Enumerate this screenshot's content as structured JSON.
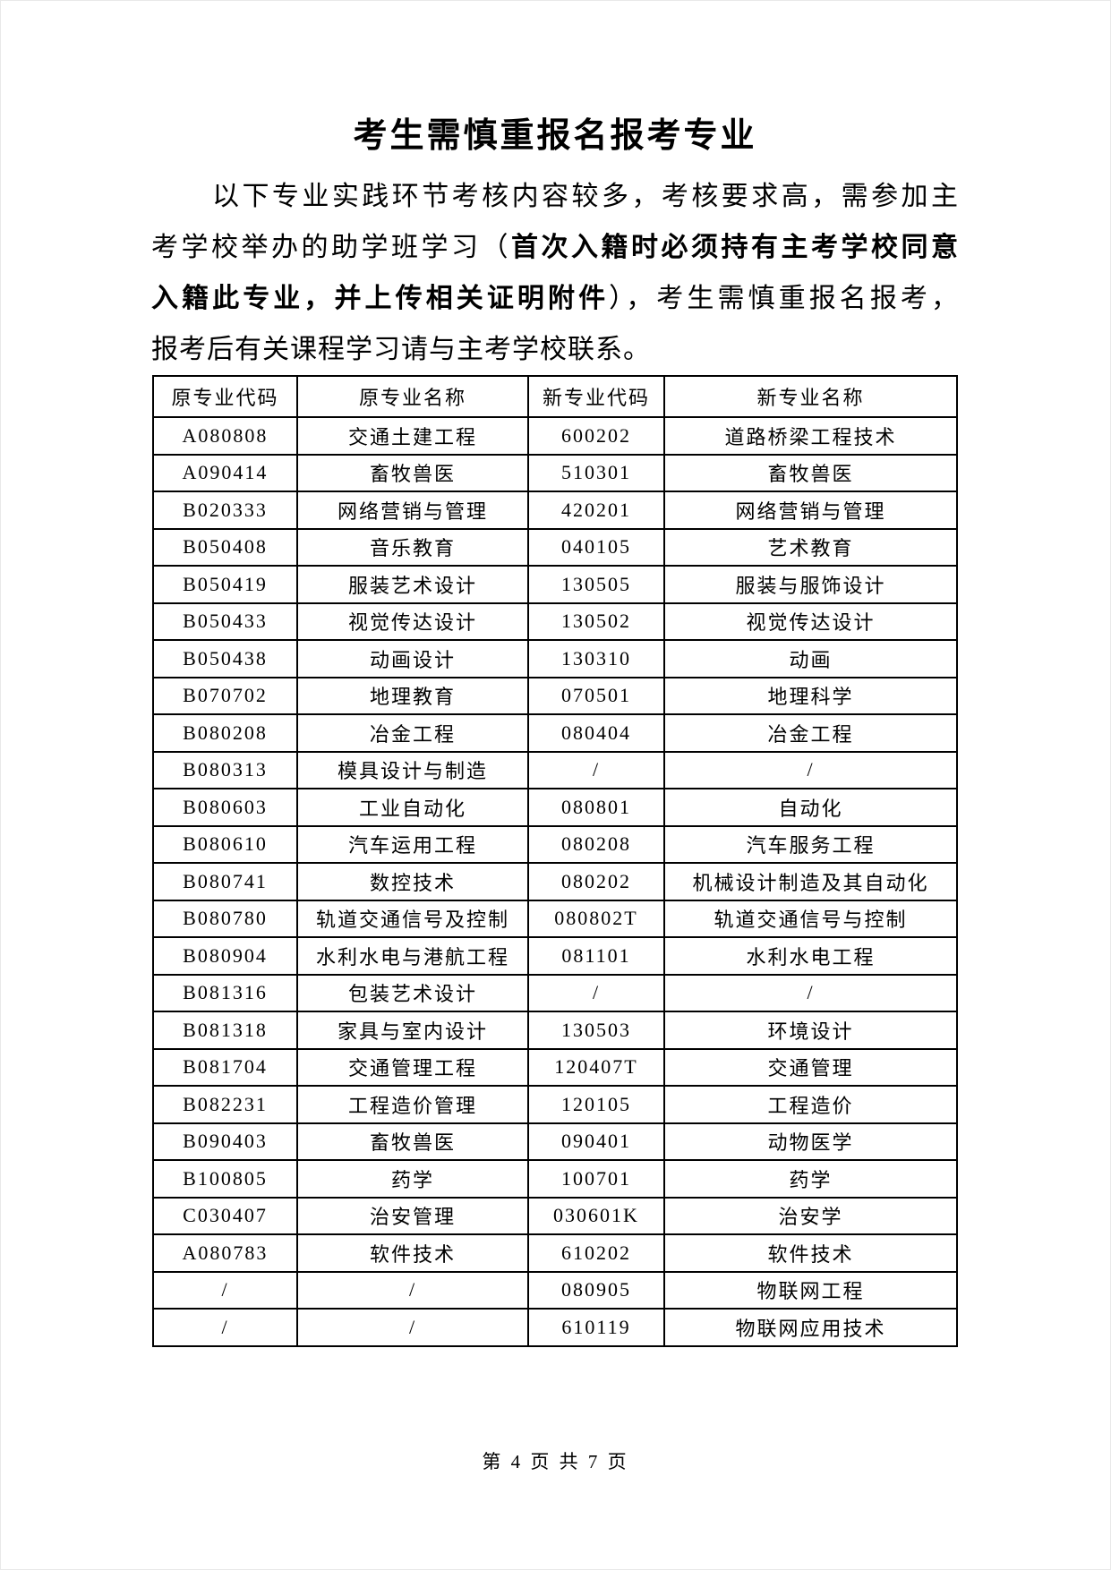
{
  "document": {
    "title": "考生需慎重报名报考专业",
    "footer": "第 4 页 共 7 页"
  },
  "intro": {
    "lines": [
      {
        "indent": true,
        "justify": true,
        "segments": [
          {
            "text": "以下专业实践环节考核内容较多，考核要求高，需参加主",
            "bold": false
          }
        ]
      },
      {
        "indent": false,
        "justify": true,
        "segments": [
          {
            "text": "考学校举办的助学班学习（",
            "bold": false
          },
          {
            "text": "首次入籍时必须持有主考学校同意",
            "bold": true
          }
        ]
      },
      {
        "indent": false,
        "justify": true,
        "segments": [
          {
            "text": "入籍此专业，并上传相关证明附件",
            "bold": true
          },
          {
            "text": "），考生需慎重报名报考，",
            "bold": false
          }
        ]
      },
      {
        "indent": false,
        "justify": false,
        "segments": [
          {
            "text": "报考后有关课程学习请与主考学校联系。",
            "bold": false
          }
        ]
      }
    ]
  },
  "table": {
    "headers": [
      "原专业代码",
      "原专业名称",
      "新专业代码",
      "新专业名称"
    ],
    "rows": [
      [
        "A080808",
        "交通土建工程",
        "600202",
        "道路桥梁工程技术"
      ],
      [
        "A090414",
        "畜牧兽医",
        "510301",
        "畜牧兽医"
      ],
      [
        "B020333",
        "网络营销与管理",
        "420201",
        "网络营销与管理"
      ],
      [
        "B050408",
        "音乐教育",
        "040105",
        "艺术教育"
      ],
      [
        "B050419",
        "服装艺术设计",
        "130505",
        "服装与服饰设计"
      ],
      [
        "B050433",
        "视觉传达设计",
        "130502",
        "视觉传达设计"
      ],
      [
        "B050438",
        "动画设计",
        "130310",
        "动画"
      ],
      [
        "B070702",
        "地理教育",
        "070501",
        "地理科学"
      ],
      [
        "B080208",
        "冶金工程",
        "080404",
        "冶金工程"
      ],
      [
        "B080313",
        "模具设计与制造",
        "/",
        "/"
      ],
      [
        "B080603",
        "工业自动化",
        "080801",
        "自动化"
      ],
      [
        "B080610",
        "汽车运用工程",
        "080208",
        "汽车服务工程"
      ],
      [
        "B080741",
        "数控技术",
        "080202",
        "机械设计制造及其自动化"
      ],
      [
        "B080780",
        "轨道交通信号及控制",
        "080802T",
        "轨道交通信号与控制"
      ],
      [
        "B080904",
        "水利水电与港航工程",
        "081101",
        "水利水电工程"
      ],
      [
        "B081316",
        "包装艺术设计",
        "/",
        "/"
      ],
      [
        "B081318",
        "家具与室内设计",
        "130503",
        "环境设计"
      ],
      [
        "B081704",
        "交通管理工程",
        "120407T",
        "交通管理"
      ],
      [
        "B082231",
        "工程造价管理",
        "120105",
        "工程造价"
      ],
      [
        "B090403",
        "畜牧兽医",
        "090401",
        "动物医学"
      ],
      [
        "B100805",
        "药学",
        "100701",
        "药学"
      ],
      [
        "C030407",
        "治安管理",
        "030601K",
        "治安学"
      ],
      [
        "A080783",
        "软件技术",
        "610202",
        "软件技术"
      ],
      [
        "/",
        "/",
        "080905",
        "物联网工程"
      ],
      [
        "/",
        "/",
        "610119",
        "物联网应用技术"
      ]
    ],
    "cell_names": [
      "orig-code-cell",
      "orig-name-cell",
      "new-code-cell",
      "new-name-cell"
    ]
  },
  "colors": {
    "text": "#000000",
    "background": "#ffffff",
    "table_border": "#000000"
  }
}
